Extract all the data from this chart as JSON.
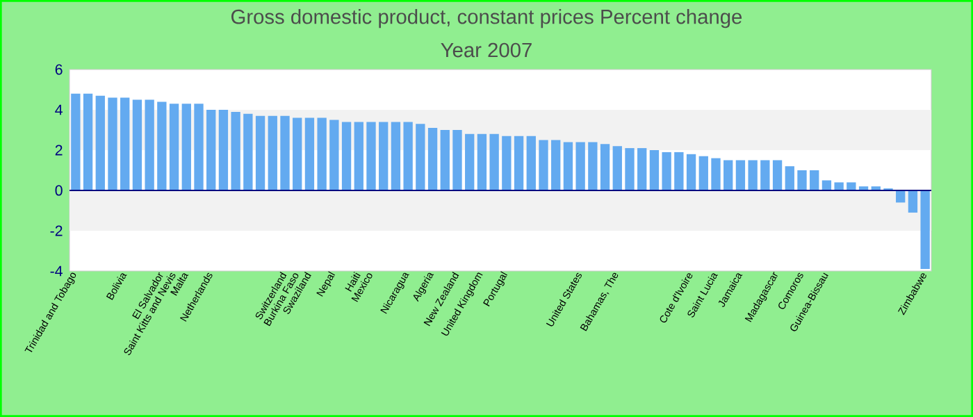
{
  "chart_data": {
    "type": "bar",
    "title": "Gross domestic product, constant prices  Percent change",
    "subtitle": "Year 2007",
    "categories": [
      "Trinidad and Tobago",
      null,
      null,
      null,
      "Bolivia",
      null,
      null,
      "El Salvador",
      "Saint Kitts and Nevis",
      "Malta",
      null,
      "Netherlands",
      null,
      null,
      null,
      null,
      null,
      "Switzerland",
      "Burkina Faso",
      "Swaziland",
      null,
      "Nepal",
      null,
      "Haiti",
      "Mexico",
      null,
      null,
      "Nicaragua",
      null,
      "Algeria",
      null,
      "New Zealand",
      null,
      "United Kingdom",
      null,
      "Portugal",
      null,
      null,
      null,
      null,
      null,
      "United States",
      null,
      null,
      "Bahamas, The",
      null,
      null,
      null,
      null,
      null,
      "Cote d'Ivoire",
      null,
      "Saint Lucia",
      null,
      "Jamaica",
      null,
      null,
      "Madagascar",
      null,
      "Comoros",
      null,
      "Guinea-Bissau",
      null,
      null,
      null,
      null,
      null,
      null,
      null,
      "Zimbabwe"
    ],
    "values": [
      4.8,
      4.8,
      4.7,
      4.6,
      4.6,
      4.5,
      4.5,
      4.4,
      4.3,
      4.3,
      4.3,
      4.0,
      4.0,
      3.9,
      3.8,
      3.7,
      3.7,
      3.7,
      3.6,
      3.6,
      3.6,
      3.5,
      3.4,
      3.4,
      3.4,
      3.4,
      3.4,
      3.4,
      3.3,
      3.1,
      3.0,
      3.0,
      2.8,
      2.8,
      2.8,
      2.7,
      2.7,
      2.7,
      2.5,
      2.5,
      2.4,
      2.4,
      2.4,
      2.3,
      2.2,
      2.1,
      2.1,
      2.0,
      1.9,
      1.9,
      1.8,
      1.7,
      1.6,
      1.5,
      1.5,
      1.5,
      1.5,
      1.5,
      1.2,
      1.0,
      1.0,
      0.5,
      0.4,
      0.4,
      0.2,
      0.2,
      0.1,
      -0.6,
      -1.1,
      -3.9
    ],
    "color": "#63aaf0",
    "ylim": [
      -4,
      6
    ],
    "yticks": [
      -4,
      -2,
      0,
      2,
      4,
      6
    ],
    "bands": [
      {
        "axis": "y",
        "from": -2,
        "to": 0,
        "color": "#f2f2f2"
      },
      {
        "axis": "y",
        "from": 2,
        "to": 4,
        "color": "#f2f2f2"
      }
    ],
    "ref_lines": [
      {
        "axis": "y",
        "value": 0,
        "color": "#000080"
      }
    ]
  }
}
